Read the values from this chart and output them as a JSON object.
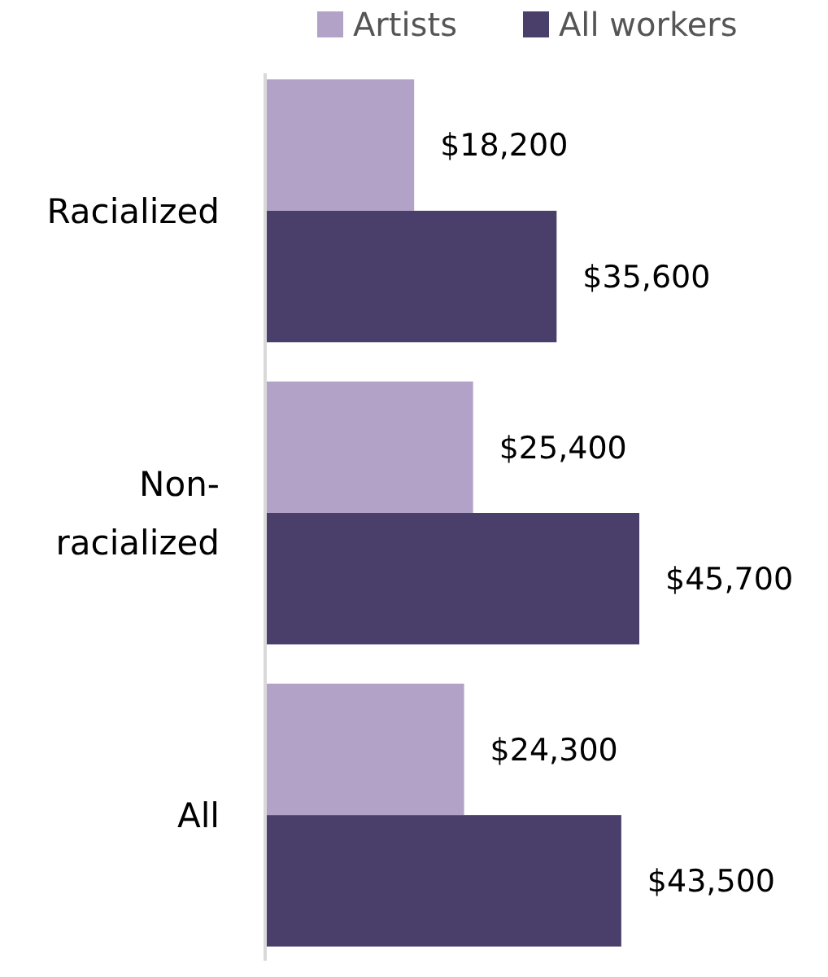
{
  "chart_data": {
    "type": "bar",
    "orientation": "horizontal",
    "categories": [
      "Racialized",
      "Non-racialized",
      "All"
    ],
    "legend": "top",
    "series": [
      {
        "name": "Artists",
        "color": "#b3a2c8",
        "values": [
          18200,
          25400,
          24300
        ],
        "value_labels": [
          "$18,200",
          "$25,400",
          "$24,300"
        ]
      },
      {
        "name": "All workers",
        "color": "#4a3f6b",
        "values": [
          35600,
          45700,
          43500
        ],
        "value_labels": [
          "$35,600",
          "$45,700",
          "$43,500"
        ]
      }
    ]
  }
}
